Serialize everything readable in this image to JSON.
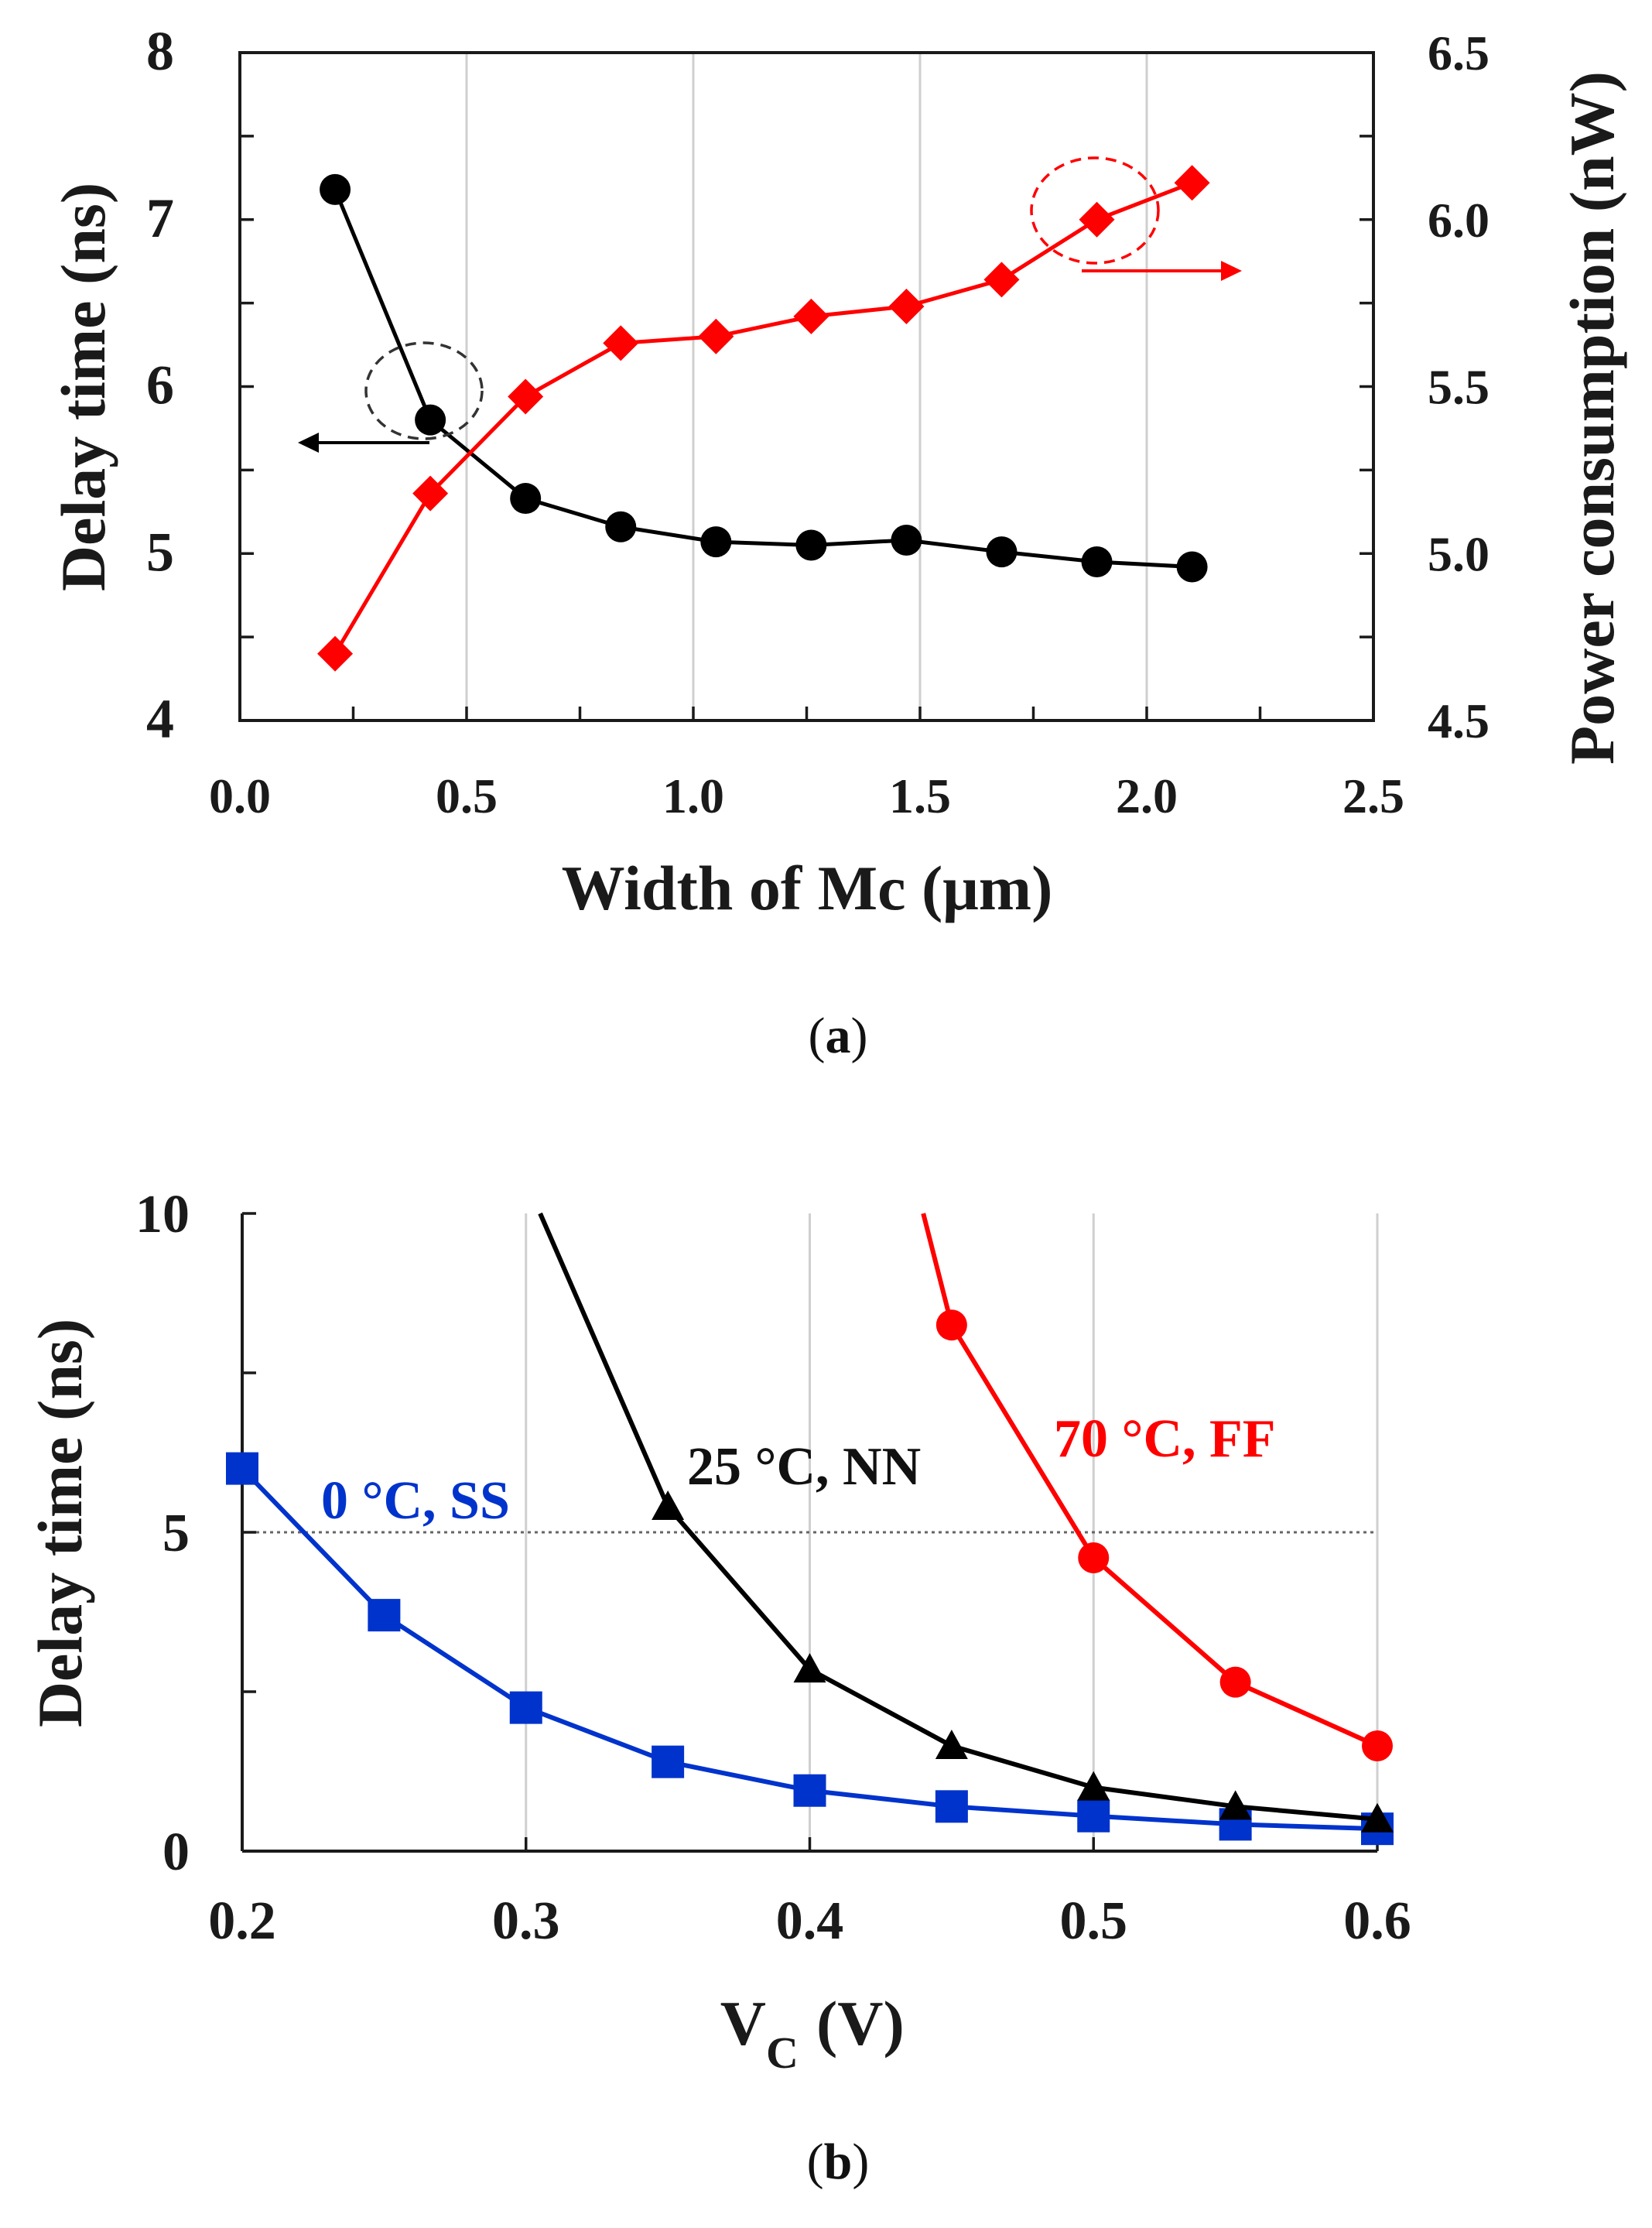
{
  "chart_data": [
    {
      "type": "line",
      "panel_label": "a",
      "xlabel": "Width of Mc (μm)",
      "ylabel_left": "Delay time (ns)",
      "ylabel_right": "Power consumption (nW)",
      "xlim": [
        0.0,
        2.5
      ],
      "ylim_left": [
        4,
        8
      ],
      "ylim_right": [
        4.5,
        6.5
      ],
      "x_ticks": [
        "0.0",
        "0.5",
        "1.0",
        "1.5",
        "2.0",
        "2.5"
      ],
      "y_left_ticks": [
        "4",
        "5",
        "6",
        "7",
        "8"
      ],
      "y_right_ticks": [
        "4.5",
        "5.0",
        "5.5",
        "6.0",
        "6.5"
      ],
      "grid": true,
      "x": [
        0.21,
        0.42,
        0.63,
        0.84,
        1.05,
        1.26,
        1.47,
        1.68,
        1.89,
        2.1
      ],
      "series": [
        {
          "name": "Delay time",
          "axis": "left",
          "color": "#000000",
          "marker": "circle",
          "values": [
            7.18,
            5.8,
            5.33,
            5.16,
            5.07,
            5.05,
            5.08,
            5.01,
            4.95,
            4.92
          ]
        },
        {
          "name": "Power consumption",
          "axis": "right",
          "color": "#ff0000",
          "marker": "diamond",
          "values": [
            4.7,
            5.18,
            5.47,
            5.63,
            5.65,
            5.71,
            5.74,
            5.82,
            6.0,
            6.11
          ]
        }
      ],
      "annotations": [
        "dashed circle around delay curve with arrow pointing left to left axis",
        "dashed circle around power curve with arrow pointing right to right axis"
      ]
    },
    {
      "type": "line",
      "panel_label": "b",
      "xlabel_main": "V",
      "xlabel_sub": "C",
      "xlabel_unit": "(V)",
      "ylabel": "Delay time (ns)",
      "xlim": [
        0.2,
        0.6
      ],
      "ylim": [
        0,
        10
      ],
      "x_ticks": [
        "0.2",
        "0.3",
        "0.4",
        "0.5",
        "0.6"
      ],
      "y_ticks": [
        "0",
        "5",
        "10"
      ],
      "grid": true,
      "reference_line": 5,
      "series": [
        {
          "name": "0 °C, SS",
          "color": "#0033cc",
          "marker": "square",
          "x": [
            0.2,
            0.25,
            0.3,
            0.35,
            0.4,
            0.45,
            0.5,
            0.55,
            0.6
          ],
          "values": [
            6.0,
            3.7,
            2.25,
            1.4,
            0.95,
            0.7,
            0.55,
            0.42,
            0.35
          ]
        },
        {
          "name": "25 °C, NN",
          "color": "#000000",
          "marker": "triangle",
          "x": [
            0.305,
            0.35,
            0.4,
            0.45,
            0.5,
            0.55,
            0.6
          ],
          "values": [
            10.0,
            5.4,
            2.85,
            1.65,
            1.0,
            0.7,
            0.5
          ]
        },
        {
          "name": "70 °C, FF",
          "color": "#ff0000",
          "marker": "circle",
          "x": [
            0.44,
            0.45,
            0.5,
            0.55,
            0.6
          ],
          "values": [
            10.0,
            8.25,
            4.6,
            2.65,
            1.65
          ]
        }
      ]
    }
  ]
}
